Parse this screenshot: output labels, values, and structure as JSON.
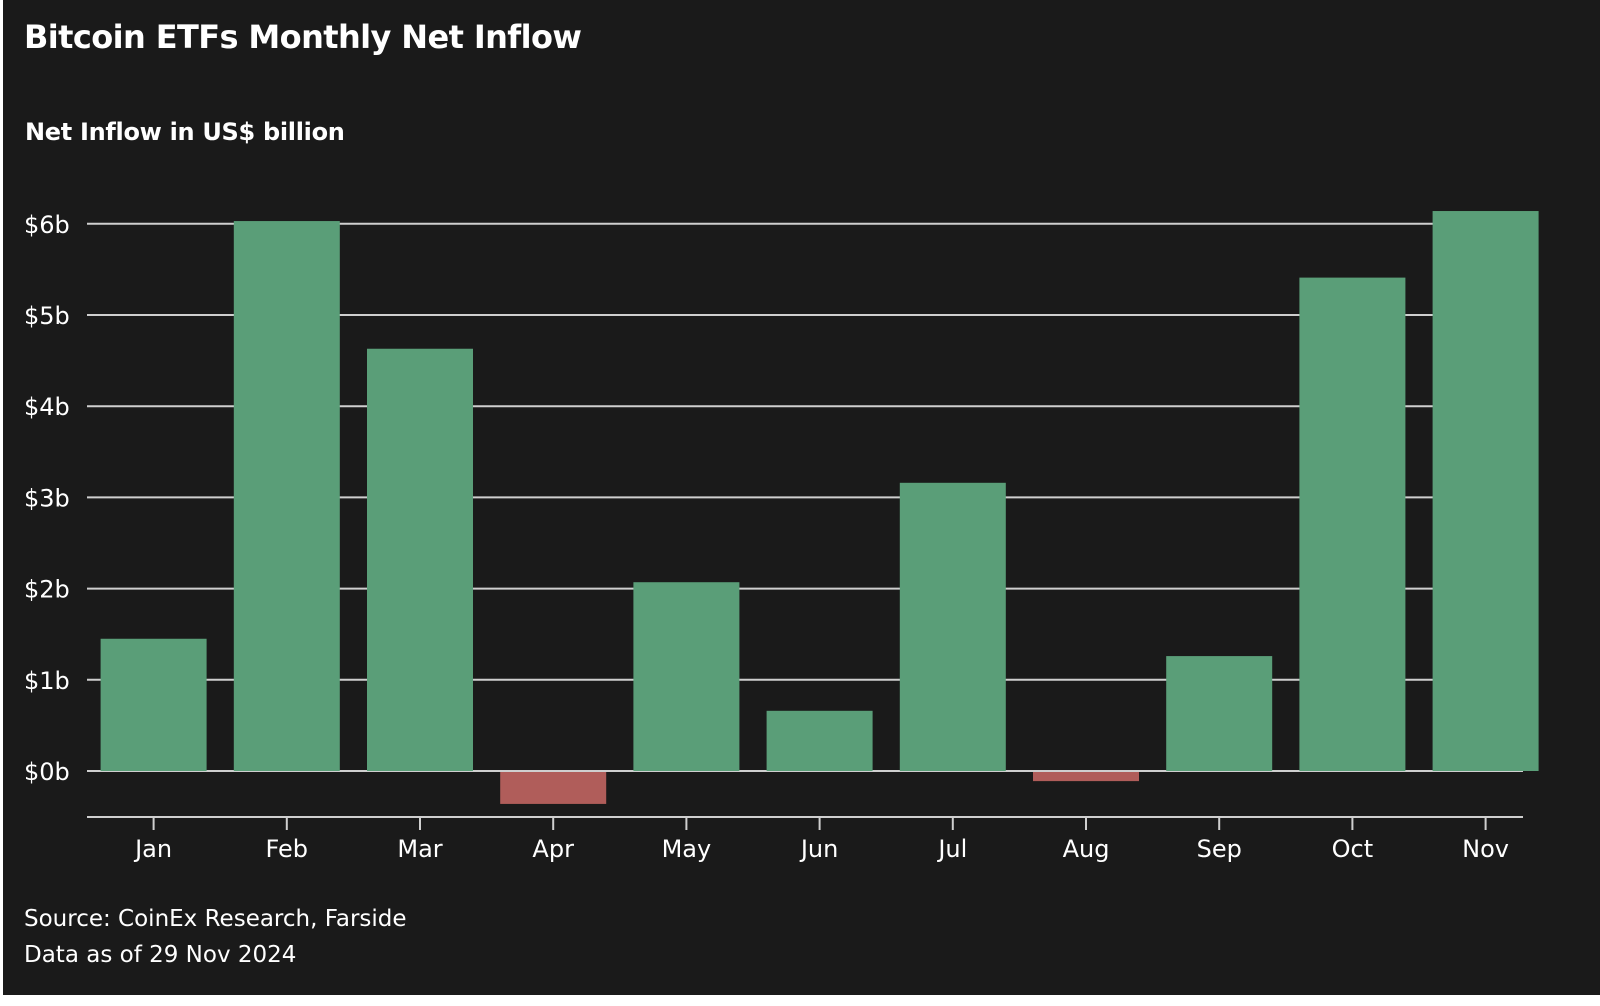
{
  "chart_data": {
    "type": "bar",
    "title": "Bitcoin ETFs Monthly Net Inflow",
    "subtitle": "Net Inflow in US$ billion",
    "categories": [
      "Jan",
      "Feb",
      "Mar",
      "Apr",
      "May",
      "Jun",
      "Jul",
      "Aug",
      "Sep",
      "Oct",
      "Nov"
    ],
    "values": [
      1.45,
      6.03,
      4.63,
      -0.35,
      2.07,
      0.66,
      3.16,
      -0.1,
      1.26,
      5.41,
      6.14
    ],
    "ylim": [
      -0.5,
      6.0
    ],
    "yticks": [
      0,
      1,
      2,
      3,
      4,
      5,
      6
    ],
    "ytick_labels": [
      "$0b",
      "$1b",
      "$2b",
      "$3b",
      "$4b",
      "$5b",
      "$6b"
    ],
    "xlabel": "",
    "ylabel": "",
    "grid": true,
    "colors": {
      "positive": "#5a9e78",
      "negative": "#b05d5a",
      "background": "#1a1a1a",
      "gridline": "#cfcfcf",
      "text": "#ffffff"
    }
  },
  "footer": {
    "source": "Source: CoinEx Research, Farside",
    "date_note": "Data as of 29 Nov 2024"
  }
}
